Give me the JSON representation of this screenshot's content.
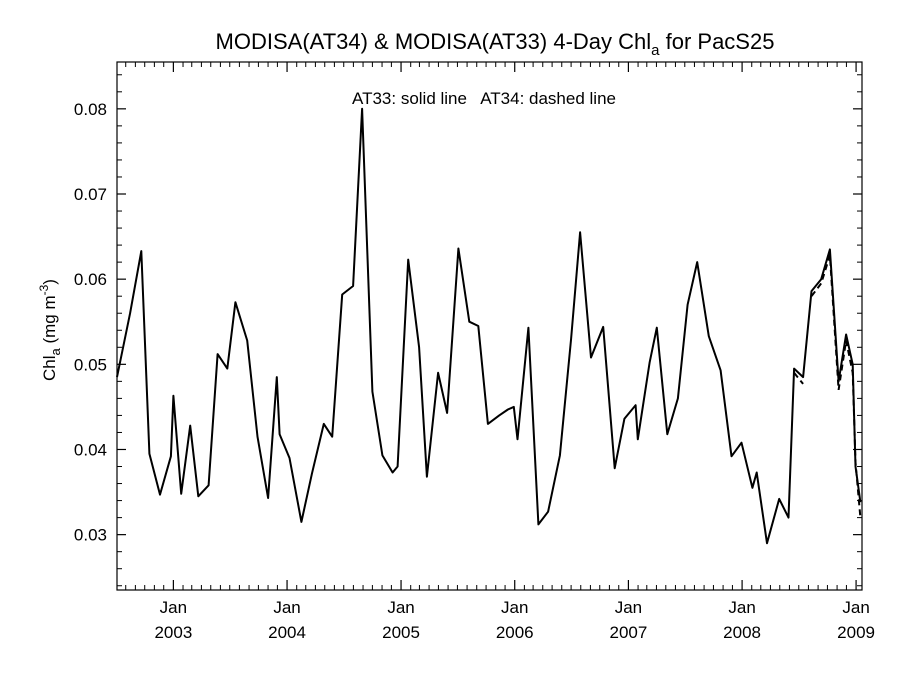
{
  "chart_data": {
    "type": "line",
    "title": {
      "prefix": "MODISA(AT34) & MODISA(AT33) 4-Day Chl",
      "sub": "a",
      "suffix": " for PacS25"
    },
    "ylabel": {
      "prefix": "Chl",
      "sub": "a",
      "unit": " (mg m",
      "sup": "-3",
      "close": ")"
    },
    "xlabel": "",
    "annotation": "AT33: solid line   AT34: dashed line",
    "xlim": [
      "2002-07-04",
      "2009-01-20"
    ],
    "ylim": [
      0.0235,
      0.0855
    ],
    "grid": false,
    "yticks": [
      {
        "value": 0.03,
        "label": "0.03"
      },
      {
        "value": 0.04,
        "label": "0.04"
      },
      {
        "value": 0.05,
        "label": "0.05"
      },
      {
        "value": 0.06,
        "label": "0.06"
      },
      {
        "value": 0.07,
        "label": "0.07"
      },
      {
        "value": 0.08,
        "label": "0.08"
      }
    ],
    "xticks": [
      {
        "date": "2003-01-01",
        "month": "Jan",
        "year": "2003"
      },
      {
        "date": "2004-01-01",
        "month": "Jan",
        "year": "2004"
      },
      {
        "date": "2005-01-01",
        "month": "Jan",
        "year": "2005"
      },
      {
        "date": "2006-01-01",
        "month": "Jan",
        "year": "2006"
      },
      {
        "date": "2007-01-01",
        "month": "Jan",
        "year": "2007"
      },
      {
        "date": "2008-01-01",
        "month": "Jan",
        "year": "2008"
      },
      {
        "date": "2009-01-01",
        "month": "Jan",
        "year": "2009"
      }
    ],
    "series": [
      {
        "style": "solid",
        "points": [
          [
            "2002-07-04",
            0.0485
          ],
          [
            "2002-08-15",
            0.056
          ],
          [
            "2002-09-20",
            0.0633
          ],
          [
            "2002-10-16",
            0.0395
          ],
          [
            "2002-11-19",
            0.0347
          ],
          [
            "2002-12-24",
            0.0392
          ],
          [
            "2003-01-01",
            0.0463
          ],
          [
            "2003-01-26",
            0.0348
          ],
          [
            "2003-02-24",
            0.0428
          ],
          [
            "2003-03-22",
            0.0345
          ],
          [
            "2003-04-24",
            0.0358
          ],
          [
            "2003-05-23",
            0.0512
          ],
          [
            "2003-06-23",
            0.0495
          ],
          [
            "2003-07-19",
            0.0573
          ],
          [
            "2003-08-26",
            0.0528
          ],
          [
            "2003-09-28",
            0.0415
          ],
          [
            "2003-11-01",
            0.0343
          ],
          [
            "2003-11-29",
            0.0485
          ],
          [
            "2003-12-08",
            0.0418
          ],
          [
            "2004-01-09",
            0.039
          ],
          [
            "2004-02-16",
            0.0315
          ],
          [
            "2004-03-21",
            0.0372
          ],
          [
            "2004-04-28",
            0.043
          ],
          [
            "2004-05-25",
            0.0415
          ],
          [
            "2004-06-26",
            0.0582
          ],
          [
            "2004-07-31",
            0.0592
          ],
          [
            "2004-08-29",
            0.08
          ],
          [
            "2004-10-01",
            0.0468
          ],
          [
            "2004-11-02",
            0.0393
          ],
          [
            "2004-12-05",
            0.0373
          ],
          [
            "2004-12-21",
            0.038
          ],
          [
            "2005-01-24",
            0.0623
          ],
          [
            "2005-02-28",
            0.052
          ],
          [
            "2005-03-25",
            0.0368
          ],
          [
            "2005-04-30",
            0.049
          ],
          [
            "2005-05-29",
            0.0443
          ],
          [
            "2005-07-04",
            0.0636
          ],
          [
            "2005-08-08",
            0.055
          ],
          [
            "2005-09-06",
            0.0545
          ],
          [
            "2005-10-07",
            0.043
          ],
          [
            "2005-11-12",
            0.044
          ],
          [
            "2005-12-10",
            0.0447
          ],
          [
            "2005-12-29",
            0.045
          ],
          [
            "2006-01-10",
            0.0412
          ],
          [
            "2006-02-14",
            0.0543
          ],
          [
            "2006-03-18",
            0.0312
          ],
          [
            "2006-04-18",
            0.0327
          ],
          [
            "2006-05-26",
            0.0393
          ],
          [
            "2006-07-01",
            0.053
          ],
          [
            "2006-07-30",
            0.0655
          ],
          [
            "2006-09-03",
            0.0508
          ],
          [
            "2006-10-12",
            0.0544
          ],
          [
            "2006-11-18",
            0.0378
          ],
          [
            "2006-12-19",
            0.0436
          ],
          [
            "2007-01-24",
            0.0452
          ],
          [
            "2007-01-31",
            0.0412
          ],
          [
            "2007-03-10",
            0.0502
          ],
          [
            "2007-04-02",
            0.0543
          ],
          [
            "2007-05-06",
            0.0418
          ],
          [
            "2007-06-09",
            0.046
          ],
          [
            "2007-07-10",
            0.057
          ],
          [
            "2007-08-10",
            0.062
          ],
          [
            "2007-09-16",
            0.0533
          ],
          [
            "2007-10-24",
            0.0493
          ],
          [
            "2007-11-28",
            0.0392
          ],
          [
            "2007-12-30",
            0.0408
          ],
          [
            "2008-02-03",
            0.0355
          ],
          [
            "2008-02-17",
            0.0373
          ],
          [
            "2008-03-21",
            0.029
          ],
          [
            "2008-04-29",
            0.0342
          ],
          [
            "2008-05-29",
            0.032
          ],
          [
            "2008-06-16",
            0.0495
          ],
          [
            "2008-07-15",
            0.0485
          ],
          [
            "2008-08-11",
            0.0586
          ],
          [
            "2008-09-11",
            0.06
          ],
          [
            "2008-10-09",
            0.0635
          ],
          [
            "2008-11-06",
            0.048
          ],
          [
            "2008-11-30",
            0.0535
          ],
          [
            "2008-12-21",
            0.05
          ],
          [
            "2008-12-30",
            0.038
          ],
          [
            "2009-01-15",
            0.0338
          ]
        ]
      },
      {
        "style": "dashed",
        "segments": [
          [
            [
              "2008-06-16",
              0.049
            ],
            [
              "2008-07-15",
              0.0477
            ]
          ],
          [
            [
              "2008-08-11",
              0.058
            ],
            [
              "2008-09-11",
              0.0595
            ],
            [
              "2008-10-09",
              0.0628
            ],
            [
              "2008-11-06",
              0.047
            ],
            [
              "2008-11-30",
              0.0528
            ],
            [
              "2008-12-21",
              0.049
            ],
            [
              "2008-12-30",
              0.0385
            ],
            [
              "2009-01-15",
              0.032
            ]
          ]
        ]
      }
    ]
  }
}
